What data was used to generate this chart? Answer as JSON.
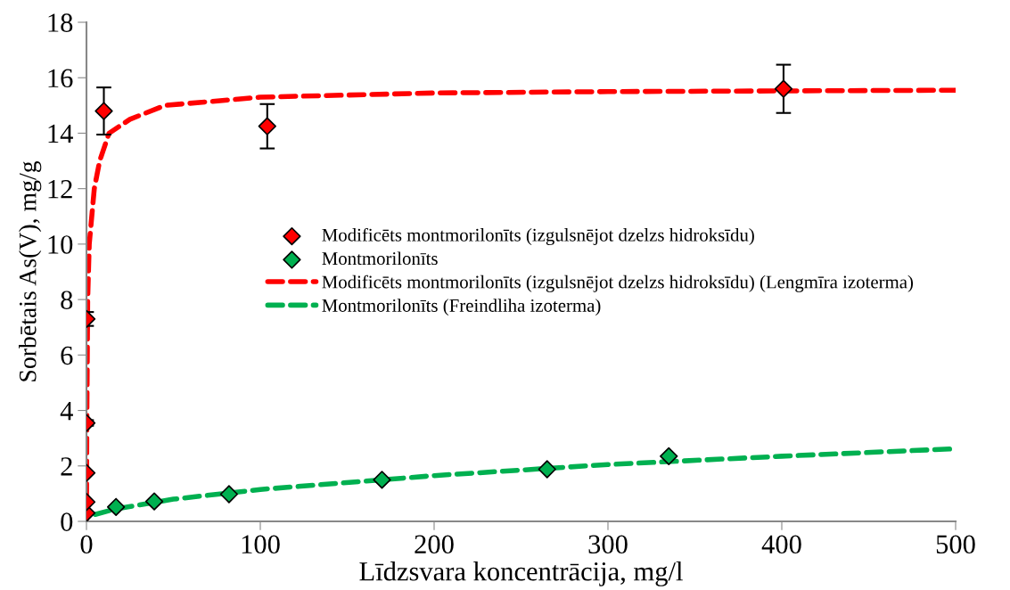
{
  "chart_data": {
    "type": "scatter",
    "xlabel": "Līdzsvara koncentrācija, mg/l",
    "ylabel": "Sorbētais As(V), mg/g",
    "xlim": [
      0,
      500
    ],
    "xticks": [
      0,
      100,
      200,
      300,
      400,
      500
    ],
    "ylim": [
      0,
      18
    ],
    "yticks": [
      0,
      2,
      4,
      6,
      8,
      10,
      12,
      14,
      16,
      18
    ],
    "grid": false,
    "legend": "center",
    "series": [
      {
        "name": "Modificēts montmorilonīts (izgulsnējot dzelzs hidroksīdu)",
        "marker": "diamond",
        "color": "#ff0000",
        "x": [
          0,
          0,
          0,
          0,
          0,
          10,
          104,
          401
        ],
        "values": [
          0.3,
          0.7,
          1.75,
          3.55,
          7.3,
          14.8,
          14.25,
          15.6
        ],
        "errors": [
          null,
          null,
          null,
          0.1,
          0.25,
          0.85,
          0.8,
          0.87
        ]
      },
      {
        "name": "Montmorilonīts",
        "marker": "diamond",
        "color": "#00b050",
        "x": [
          17,
          39,
          82,
          170,
          265,
          335
        ],
        "values": [
          0.52,
          0.72,
          0.98,
          1.5,
          1.88,
          2.35
        ]
      },
      {
        "name": "Modificēts montmorilonīts (izgulsnējot dzelzs hidroksīdu) (Lengmīra izoterma)",
        "type": "line",
        "line_style": "dashed",
        "color": "#ff0000",
        "x": [
          0,
          0.1,
          0.25,
          0.7,
          1.6,
          4.5,
          7.6,
          13,
          25,
          45,
          100,
          200,
          300,
          500
        ],
        "values": [
          0,
          2,
          4,
          8,
          10,
          12,
          13,
          14,
          14.5,
          15,
          15.3,
          15.45,
          15.5,
          15.55
        ]
      },
      {
        "name": "Montmorilonīts (Freindliha izoterma)",
        "type": "line",
        "line_style": "dashed",
        "color": "#00b050",
        "x": [
          5,
          17,
          50,
          100,
          200,
          300,
          400,
          500
        ],
        "values": [
          0.25,
          0.45,
          0.8,
          1.15,
          1.65,
          2.05,
          2.35,
          2.62
        ]
      }
    ]
  }
}
